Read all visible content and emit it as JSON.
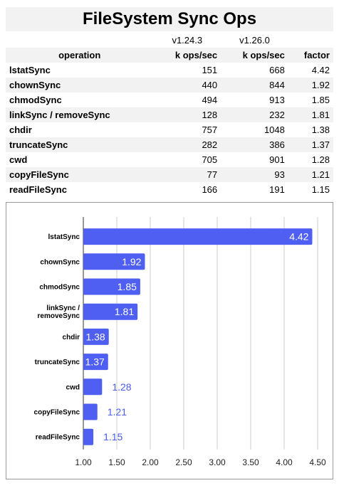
{
  "title": "FileSystem Sync Ops",
  "versions": [
    "v1.24.3",
    "v1.26.0"
  ],
  "columns": [
    "operation",
    "k ops/sec",
    "k ops/sec",
    "factor"
  ],
  "rows": [
    {
      "op": "lstatSync",
      "a": "151",
      "b": "668",
      "factor": "4.42"
    },
    {
      "op": "chownSync",
      "a": "440",
      "b": "844",
      "factor": "1.92"
    },
    {
      "op": "chmodSync",
      "a": "494",
      "b": "913",
      "factor": "1.85"
    },
    {
      "op": "linkSync / removeSync",
      "a": "128",
      "b": "232",
      "factor": "1.81"
    },
    {
      "op": "chdir",
      "a": "757",
      "b": "1048",
      "factor": "1.38"
    },
    {
      "op": "truncateSync",
      "a": "282",
      "b": "386",
      "factor": "1.37"
    },
    {
      "op": "cwd",
      "a": "705",
      "b": "901",
      "factor": "1.28"
    },
    {
      "op": "copyFileSync",
      "a": "77",
      "b": "93",
      "factor": "1.21"
    },
    {
      "op": "readFileSync",
      "a": "166",
      "b": "191",
      "factor": "1.15"
    }
  ],
  "chart_data": {
    "type": "bar",
    "orientation": "horizontal",
    "categories": [
      "lstatSync",
      "chownSync",
      "chmodSync",
      "linkSync / removeSync",
      "chdir",
      "truncateSync",
      "cwd",
      "copyFileSync",
      "readFileSync"
    ],
    "category_lines": [
      [
        "lstatSync"
      ],
      [
        "chownSync"
      ],
      [
        "chmodSync"
      ],
      [
        "linkSync /",
        "removeSync"
      ],
      [
        "chdir"
      ],
      [
        "truncateSync"
      ],
      [
        "cwd"
      ],
      [
        "copyFileSync"
      ],
      [
        "readFileSync"
      ]
    ],
    "values": [
      4.42,
      1.92,
      1.85,
      1.81,
      1.38,
      1.37,
      1.28,
      1.21,
      1.15
    ],
    "value_labels": [
      "4.42",
      "1.92",
      "1.85",
      "1.81",
      "1.38",
      "1.37",
      "1.28",
      "1.21",
      "1.15"
    ],
    "xlim": [
      1.0,
      4.5
    ],
    "xticks": [
      1.0,
      1.5,
      2.0,
      2.5,
      3.0,
      3.5,
      4.0,
      4.5
    ],
    "xtick_labels": [
      "1.00",
      "1.50",
      "2.00",
      "2.50",
      "3.00",
      "3.50",
      "4.00",
      "4.50"
    ],
    "grid": true,
    "bar_color": "#4f5ff2",
    "title": "",
    "xlabel": "",
    "ylabel": ""
  }
}
